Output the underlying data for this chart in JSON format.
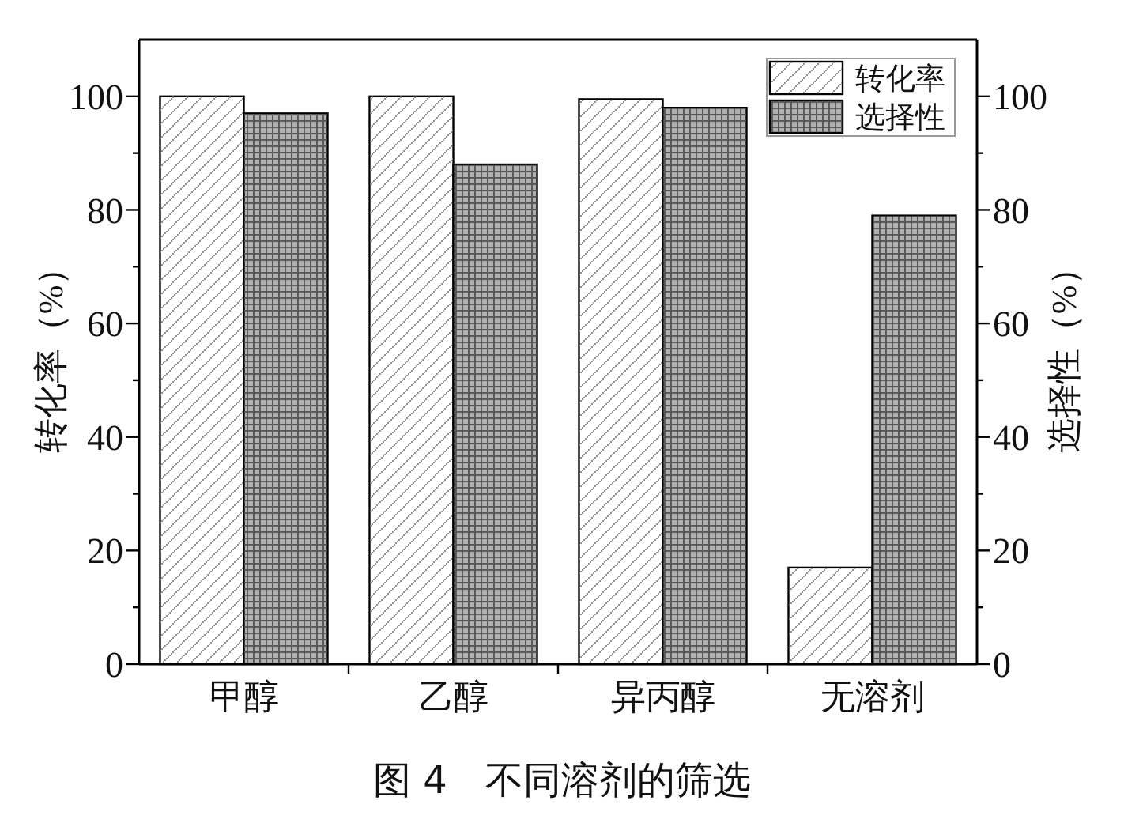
{
  "chart_data": {
    "type": "bar",
    "title": "图 4　不同溶剂的筛选",
    "ylabel": "转化率（%）",
    "y2label": "选择性（%）",
    "categories": [
      "甲醇",
      "乙醇",
      "异丙醇",
      "无溶剂"
    ],
    "series": [
      {
        "name": "转化率",
        "color": "#ffffff",
        "values": [
          100,
          100,
          99.5,
          17
        ]
      },
      {
        "name": "选择性",
        "color": "#b0b0b0",
        "axis": "y2",
        "values": [
          97,
          88,
          98,
          79
        ]
      }
    ],
    "ylim": [
      0,
      110
    ],
    "yticks": [
      0,
      {
        "value": 10,
        "label": null
      },
      20,
      {
        "value": 30,
        "label": null
      },
      40,
      {
        "value": 50,
        "label": null
      },
      60,
      {
        "value": 70,
        "label": null
      },
      80,
      {
        "value": 90,
        "label": null
      },
      100
    ],
    "y2lim": [
      0,
      110
    ],
    "y2ticks": [
      0,
      {
        "value": 10,
        "label": null
      },
      20,
      {
        "value": 30,
        "label": null
      },
      40,
      {
        "value": 50,
        "label": null
      },
      60,
      {
        "value": 70,
        "label": null
      },
      80,
      {
        "value": 90,
        "label": null
      },
      100
    ],
    "legend": "top right"
  }
}
